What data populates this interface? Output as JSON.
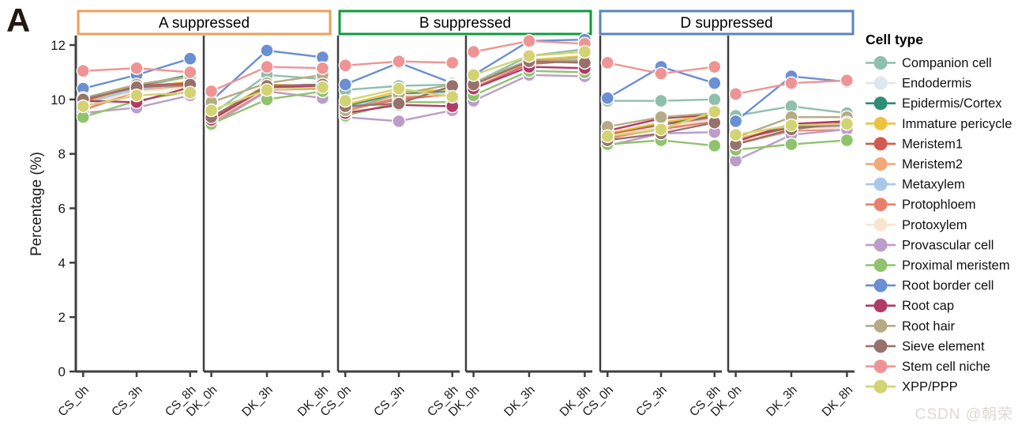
{
  "figure_label": "A",
  "watermark": "CSDN @朝荣",
  "chart_data": {
    "type": "line",
    "title": "",
    "ylabel": "Percentage (%)",
    "y_ticks": [
      0,
      2,
      4,
      6,
      8,
      10,
      12
    ],
    "ylim": [
      0,
      12.4
    ],
    "grid": false,
    "legend_title": "Cell type",
    "legend_position": "right",
    "categories": [
      "CS_0h",
      "CS_3h",
      "CS_8h",
      "DK_0h",
      "DK_3h",
      "DK_8h"
    ],
    "facets": [
      {
        "key": "A",
        "title": "A suppressed",
        "border_color": "#ED9F5B"
      },
      {
        "key": "B",
        "title": "B suppressed",
        "border_color": "#0D9B3C"
      },
      {
        "key": "D",
        "title": "D suppressed",
        "border_color": "#5A84BD"
      }
    ],
    "series": [
      {
        "name": "Companion cell",
        "color": "#8FBFAD",
        "values": {
          "A": [
            9.95,
            10.45,
            10.85,
            9.45,
            10.9,
            10.75
          ],
          "B": [
            10.35,
            10.5,
            10.55,
            10.6,
            11.6,
            11.85
          ],
          "D": [
            9.95,
            9.95,
            10.0,
            9.4,
            9.75,
            9.5
          ]
        }
      },
      {
        "name": "Endodermis",
        "color": "#DCE7F0",
        "values": {
          "A": [
            9.8,
            10.35,
            10.5,
            9.3,
            10.45,
            10.5
          ],
          "B": [
            9.7,
            10.1,
            10.2,
            10.5,
            11.35,
            11.5
          ],
          "D": [
            8.6,
            9.0,
            9.3,
            8.4,
            8.9,
            9.0
          ]
        }
      },
      {
        "name": "Epidermis/Cortex",
        "color": "#2F8C75",
        "values": {
          "A": [
            9.85,
            10.5,
            10.9,
            9.3,
            10.5,
            10.55
          ],
          "B": [
            9.75,
            10.2,
            10.3,
            10.55,
            11.4,
            11.55
          ],
          "D": [
            8.7,
            9.1,
            9.4,
            8.5,
            9.0,
            9.1
          ]
        }
      },
      {
        "name": "Immature pericycle",
        "color": "#EDC23F",
        "values": {
          "A": [
            9.9,
            10.45,
            10.65,
            9.35,
            10.55,
            10.5
          ],
          "B": [
            9.8,
            10.3,
            10.35,
            10.6,
            11.45,
            11.6
          ],
          "D": [
            8.75,
            9.15,
            9.45,
            8.55,
            9.05,
            9.15
          ]
        }
      },
      {
        "name": "Meristem1",
        "color": "#D1594E",
        "values": {
          "A": [
            9.95,
            10.5,
            10.6,
            9.3,
            10.45,
            10.55
          ],
          "B": [
            9.65,
            10.0,
            10.2,
            10.45,
            11.3,
            11.45
          ],
          "D": [
            8.7,
            9.05,
            9.35,
            8.45,
            8.95,
            9.05
          ]
        }
      },
      {
        "name": "Meristem2",
        "color": "#F2A977",
        "values": {
          "A": [
            9.6,
            10.35,
            10.45,
            9.2,
            10.4,
            10.45
          ],
          "B": [
            9.55,
            10.1,
            10.15,
            10.5,
            11.35,
            11.5
          ],
          "D": [
            8.55,
            8.95,
            9.25,
            8.35,
            8.85,
            8.95
          ]
        }
      },
      {
        "name": "Metaxylem",
        "color": "#A7C9E9",
        "values": {
          "A": [
            9.85,
            10.4,
            10.55,
            9.25,
            10.45,
            10.5
          ],
          "B": [
            9.7,
            10.15,
            10.25,
            10.55,
            11.4,
            11.5
          ],
          "D": [
            8.65,
            9.0,
            9.3,
            8.45,
            8.9,
            9.0
          ]
        }
      },
      {
        "name": "Protophloem",
        "color": "#E8816C",
        "values": {
          "A": [
            9.6,
            10.3,
            10.5,
            9.15,
            10.35,
            10.4
          ],
          "B": [
            9.6,
            10.05,
            10.2,
            10.45,
            11.35,
            11.45
          ],
          "D": [
            8.6,
            8.9,
            9.2,
            8.4,
            8.85,
            8.9
          ]
        }
      },
      {
        "name": "Protoxylem",
        "color": "#F9E5CD",
        "values": {
          "A": [
            9.75,
            10.3,
            10.45,
            9.2,
            10.4,
            10.45
          ],
          "B": [
            9.65,
            10.15,
            10.2,
            10.5,
            11.4,
            11.5
          ],
          "D": [
            8.65,
            9.0,
            9.25,
            8.45,
            8.9,
            8.95
          ]
        }
      },
      {
        "name": "Provascular cell",
        "color": "#BB9DCA",
        "values": {
          "A": [
            9.5,
            9.7,
            10.15,
            9.05,
            10.3,
            10.05
          ],
          "B": [
            9.35,
            9.2,
            9.6,
            9.95,
            10.9,
            10.85
          ],
          "D": [
            8.3,
            8.75,
            8.8,
            7.75,
            8.7,
            8.9
          ]
        }
      },
      {
        "name": "Proximal meristem",
        "color": "#90C36E",
        "values": {
          "A": [
            9.35,
            9.95,
            10.3,
            9.1,
            10.0,
            10.3
          ],
          "B": [
            9.4,
            9.9,
            9.9,
            10.15,
            11.05,
            11.0
          ],
          "D": [
            8.35,
            8.5,
            8.3,
            8.15,
            8.35,
            8.5
          ]
        }
      },
      {
        "name": "Root border cell",
        "color": "#6A8FD2",
        "values": {
          "A": [
            10.4,
            10.9,
            11.5,
            9.95,
            11.8,
            11.55
          ],
          "B": [
            10.55,
            11.35,
            10.6,
            10.9,
            12.15,
            12.2
          ],
          "D": [
            10.05,
            11.2,
            10.6,
            9.2,
            10.85,
            10.65
          ]
        }
      },
      {
        "name": "Root cap",
        "color": "#B23A67",
        "values": {
          "A": [
            9.95,
            9.9,
            10.45,
            9.25,
            10.45,
            10.5
          ],
          "B": [
            9.5,
            9.8,
            9.75,
            10.4,
            11.2,
            11.15
          ],
          "D": [
            8.85,
            9.3,
            9.45,
            8.45,
            9.1,
            9.2
          ]
        }
      },
      {
        "name": "Root hair",
        "color": "#B5AC85",
        "values": {
          "A": [
            10.05,
            10.55,
            10.85,
            9.9,
            10.6,
            10.9
          ],
          "B": [
            9.6,
            10.2,
            10.55,
            10.6,
            11.45,
            11.45
          ],
          "D": [
            9.0,
            9.35,
            9.5,
            8.6,
            9.35,
            9.35
          ]
        }
      },
      {
        "name": "Sieve element",
        "color": "#97726C",
        "values": {
          "A": [
            10.0,
            10.45,
            10.55,
            9.35,
            10.5,
            10.55
          ],
          "B": [
            9.75,
            9.85,
            10.5,
            10.55,
            11.4,
            11.35
          ],
          "D": [
            8.5,
            8.75,
            9.15,
            8.35,
            8.9,
            9.15
          ]
        }
      },
      {
        "name": "Stem cell niche",
        "color": "#EF9494",
        "values": {
          "A": [
            11.05,
            11.15,
            11.0,
            10.3,
            11.2,
            11.15
          ],
          "B": [
            11.25,
            11.4,
            11.35,
            11.75,
            12.15,
            12.05
          ],
          "D": [
            11.35,
            10.95,
            11.2,
            10.2,
            10.6,
            10.7
          ]
        }
      },
      {
        "name": "XPP/PPP",
        "color": "#D4D374",
        "values": {
          "A": [
            9.75,
            10.15,
            10.25,
            9.6,
            10.35,
            10.45
          ],
          "B": [
            9.95,
            10.4,
            10.1,
            10.9,
            11.6,
            11.75
          ],
          "D": [
            8.65,
            8.9,
            9.55,
            8.7,
            9.05,
            9.1
          ]
        }
      }
    ]
  }
}
